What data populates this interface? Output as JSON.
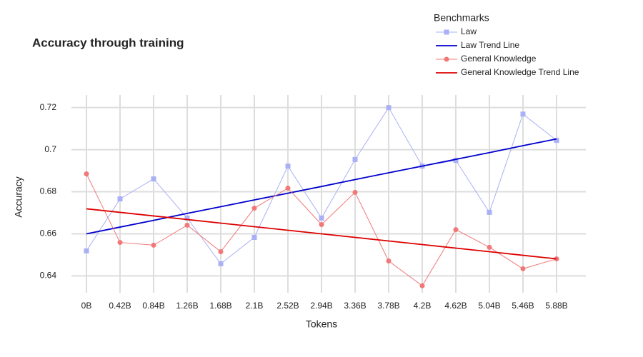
{
  "chart_data": {
    "type": "line",
    "title": "Accuracy through training",
    "x_label": "Tokens",
    "y_label": "Accuracy",
    "legend_title": "Benchmarks",
    "legend": "top-right",
    "grid": true,
    "categories": [
      "0B",
      "0.42B",
      "0.84B",
      "1.26B",
      "1.68B",
      "2.1B",
      "2.52B",
      "2.94B",
      "3.36B",
      "3.78B",
      "4.2B",
      "4.62B",
      "5.04B",
      "5.46B",
      "5.88B"
    ],
    "ylim": [
      0.632,
      0.726
    ],
    "yticks": [
      0.64,
      0.66,
      0.68,
      0.7,
      0.72
    ],
    "series": [
      {
        "name": "Law",
        "color": "#aab0f5",
        "marker": "square",
        "values": [
          0.6519,
          0.6766,
          0.6861,
          0.6675,
          0.6458,
          0.6583,
          0.6922,
          0.6675,
          0.6953,
          0.72,
          0.6922,
          0.6949,
          0.6702,
          0.7169,
          0.7044
        ]
      },
      {
        "name": "Law Trend Line",
        "color": "#0000cc",
        "values": [
          0.66,
          0.6632,
          0.6664,
          0.6697,
          0.6729,
          0.6761,
          0.6793,
          0.6825,
          0.6858,
          0.689,
          0.6922,
          0.6954,
          0.6986,
          0.7019,
          0.7051
        ]
      },
      {
        "name": "General Knowledge",
        "color": "#f07878",
        "marker": "circle",
        "values": [
          0.6885,
          0.6559,
          0.6546,
          0.6641,
          0.6515,
          0.6722,
          0.6817,
          0.6644,
          0.6797,
          0.6471,
          0.6353,
          0.662,
          0.6536,
          0.6434,
          0.6481
        ]
      },
      {
        "name": "General Knowledge Trend Line",
        "color": "#dd0000",
        "values": [
          0.6719,
          0.6702,
          0.6685,
          0.6668,
          0.6651,
          0.6634,
          0.6617,
          0.66,
          0.6583,
          0.6566,
          0.6549,
          0.6532,
          0.6515,
          0.6498,
          0.6481
        ]
      }
    ]
  }
}
